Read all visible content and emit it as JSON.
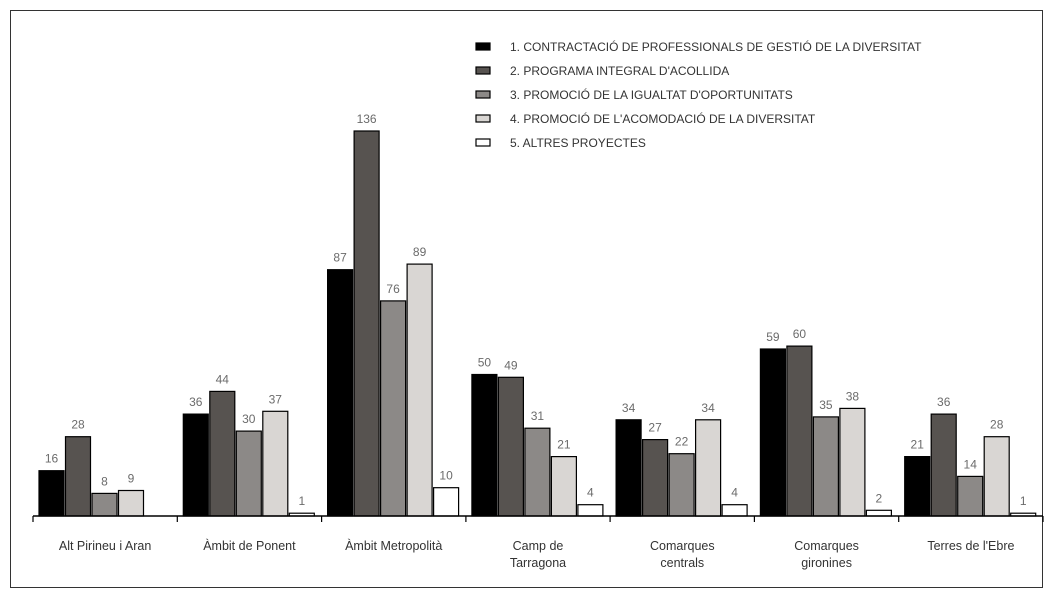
{
  "chart_data": {
    "type": "bar",
    "title": "",
    "xlabel": "",
    "ylabel": "",
    "ylim": [
      0,
      140
    ],
    "grid": false,
    "legend_position": "top-right",
    "categories": [
      [
        "Alt Pirineu i Aran"
      ],
      [
        "Àmbit de Ponent"
      ],
      [
        "Àmbit Metropolità"
      ],
      [
        "Camp de",
        "Tarragona"
      ],
      [
        "Comarques",
        "centrals"
      ],
      [
        "Comarques",
        "gironines"
      ],
      [
        "Terres de l'Ebre"
      ]
    ],
    "series": [
      {
        "name": "1. CONTRACTACIÓ DE PROFESSIONALS DE GESTIÓ DE LA DIVERSITAT",
        "color": "#000000",
        "values": [
          16,
          36,
          87,
          50,
          34,
          59,
          21
        ]
      },
      {
        "name": "2. PROGRAMA INTEGRAL D'ACOLLIDA",
        "color": "#575350",
        "values": [
          28,
          44,
          136,
          49,
          27,
          60,
          36
        ]
      },
      {
        "name": "3. PROMOCIÓ DE LA IGUALTAT D'OPORTUNITATS",
        "color": "#8c8987",
        "values": [
          8,
          30,
          76,
          31,
          22,
          35,
          14
        ]
      },
      {
        "name": "4. PROMOCIÓ DE L'ACOMODACIÓ DE LA DIVERSITAT",
        "color": "#d9d6d3",
        "values": [
          9,
          37,
          89,
          21,
          34,
          38,
          28
        ]
      },
      {
        "name": "5. ALTRES PROYECTES",
        "color": "#ffffff",
        "values": [
          null,
          1,
          10,
          4,
          4,
          2,
          1
        ]
      }
    ]
  }
}
